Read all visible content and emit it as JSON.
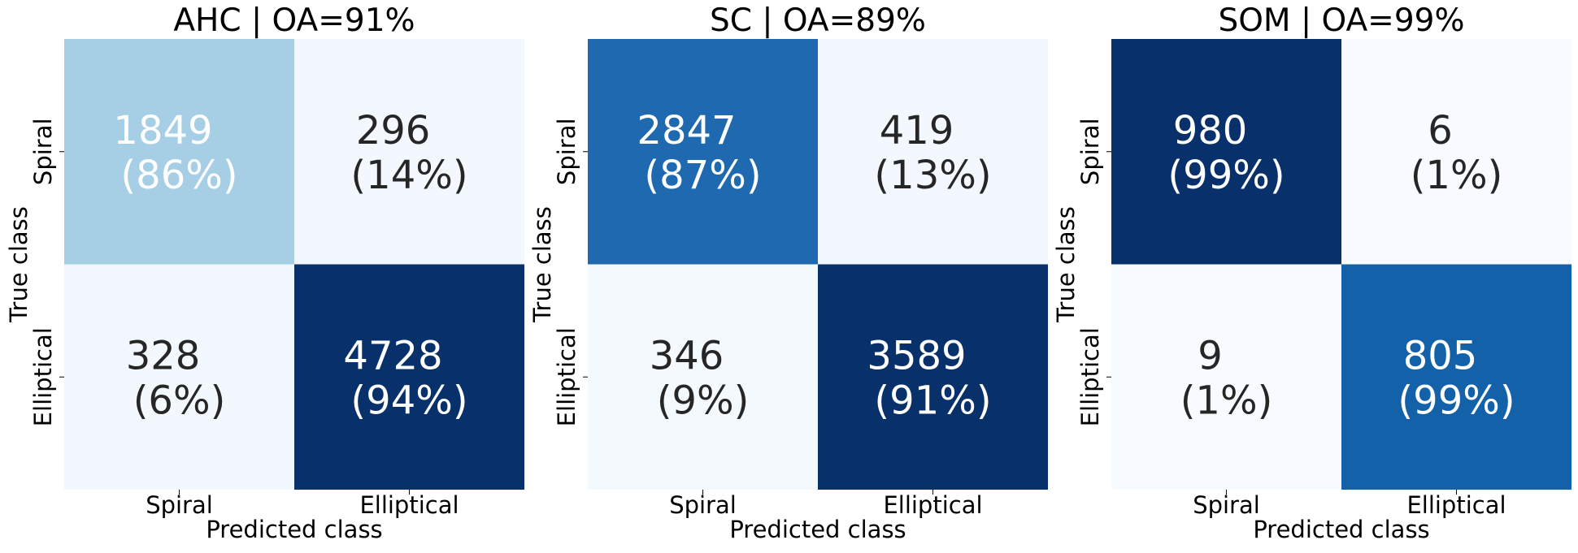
{
  "chart_data": [
    {
      "type": "heatmap",
      "title": "AHC | OA=91%",
      "xlabel": "Predicted class",
      "ylabel": "True class",
      "x_ticklabels": [
        "Spiral",
        "Elliptical"
      ],
      "y_ticklabels": [
        "Spiral",
        "Elliptical"
      ],
      "cells": [
        [
          {
            "count": "1849",
            "percent": "(86%)",
            "value": 86
          },
          {
            "count": "296",
            "percent": "(14%)",
            "value": 14
          }
        ],
        [
          {
            "count": "328",
            "percent": "(6%)",
            "value": 6
          },
          {
            "count": "4728",
            "percent": "(94%)",
            "value": 94
          }
        ]
      ],
      "colorbar": false,
      "colormap": "Blues"
    },
    {
      "type": "heatmap",
      "title": "SC | OA=89%",
      "xlabel": "Predicted class",
      "ylabel": "True class",
      "x_ticklabels": [
        "Spiral",
        "Elliptical"
      ],
      "y_ticklabels": [
        "Spiral",
        "Elliptical"
      ],
      "cells": [
        [
          {
            "count": "2847",
            "percent": "(87%)",
            "value": 87
          },
          {
            "count": "419",
            "percent": "(13%)",
            "value": 13
          }
        ],
        [
          {
            "count": "346",
            "percent": "(9%)",
            "value": 9
          },
          {
            "count": "3589",
            "percent": "(91%)",
            "value": 91
          }
        ]
      ],
      "colorbar": false,
      "colormap": "Blues"
    },
    {
      "type": "heatmap",
      "title": "SOM | OA=99%",
      "xlabel": "Predicted class",
      "ylabel": "True class",
      "x_ticklabels": [
        "Spiral",
        "Elliptical"
      ],
      "y_ticklabels": [
        "Spiral",
        "Elliptical"
      ],
      "cells": [
        [
          {
            "count": "980",
            "percent": "(99%)",
            "value": 99
          },
          {
            "count": "6",
            "percent": "(1%)",
            "value": 1
          }
        ],
        [
          {
            "count": "9",
            "percent": "(1%)",
            "value": 1
          },
          {
            "count": "805",
            "percent": "(99%)",
            "value": 99
          }
        ]
      ],
      "colorbar": false,
      "colormap": "Blues"
    }
  ],
  "colors": {
    "ahc_0_0": "#a6cee4",
    "ahc_0_1": "#f3f8fe",
    "ahc_1_0": "#f3f8fe",
    "ahc_1_1": "#08306b",
    "sc_0_0": "#1e69af",
    "sc_0_1": "#f3f8fe",
    "sc_1_0": "#f4f9fe",
    "sc_1_1": "#08306b",
    "som_0_0": "#08306b",
    "som_0_1": "#f7fbff",
    "som_1_0": "#f7fbff",
    "som_1_1": "#1261a9",
    "text_dark": "#262626",
    "text_light": "#ffffff",
    "axis_text": "#000000"
  }
}
